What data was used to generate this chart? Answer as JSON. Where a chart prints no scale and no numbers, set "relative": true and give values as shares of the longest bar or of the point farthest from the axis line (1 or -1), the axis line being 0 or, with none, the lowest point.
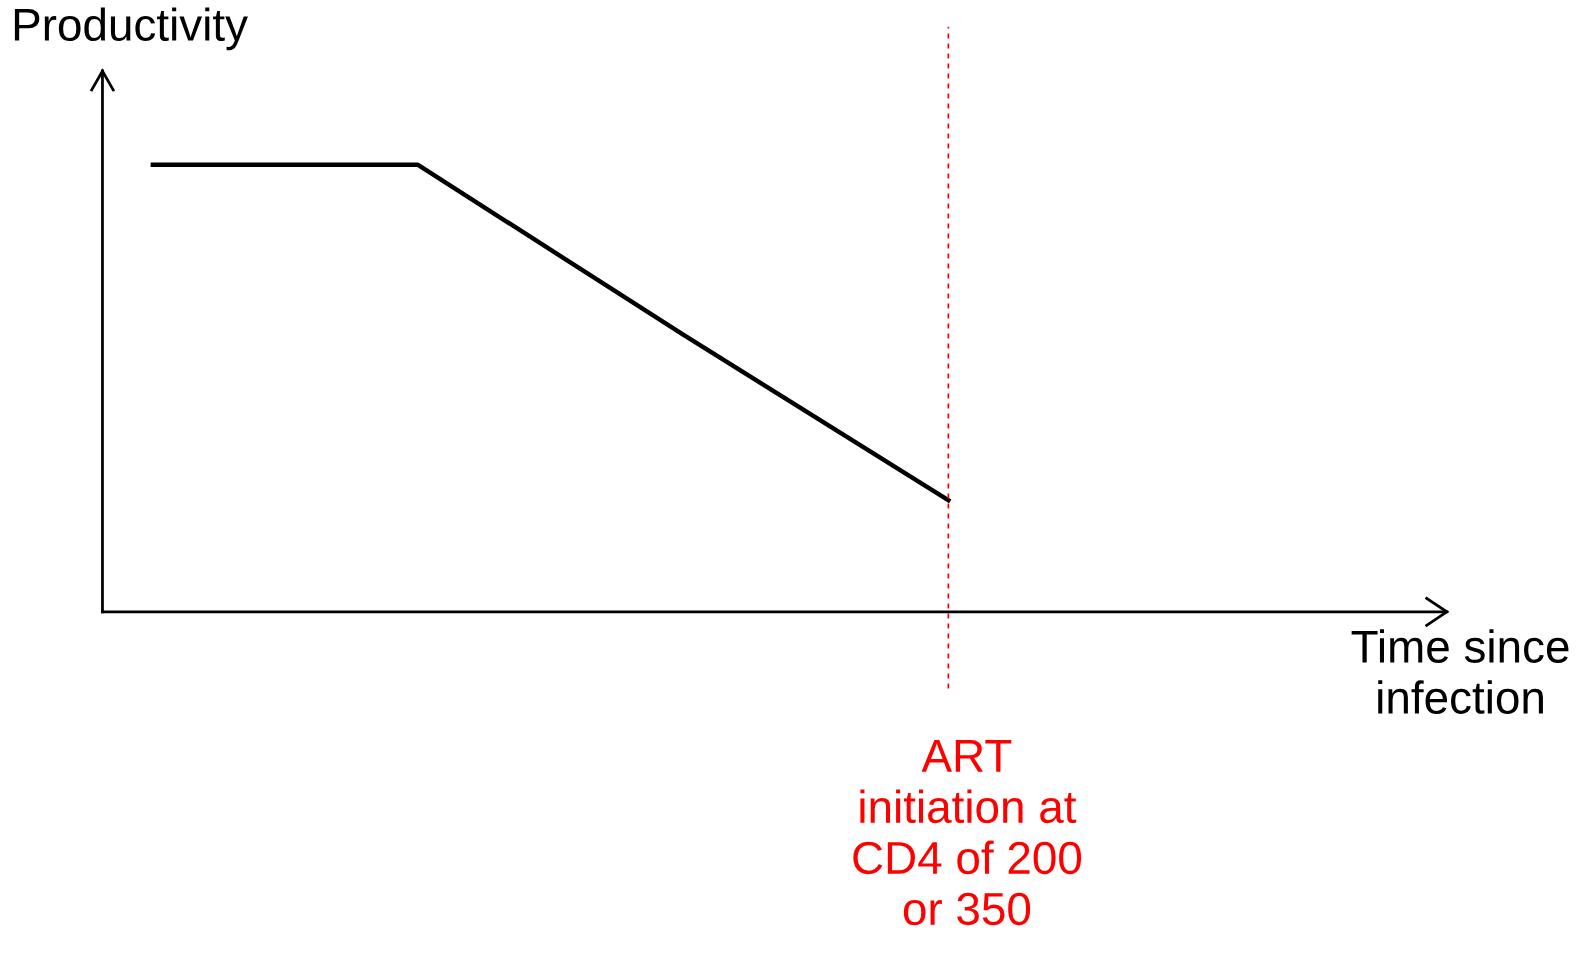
{
  "chart_data": {
    "type": "line",
    "relative": true,
    "ylabel": "Productivity",
    "categories": [
      null,
      null,
      null,
      null
    ],
    "series": [
      {
        "color": "#000000",
        "values": [
          1,
          1,
          0.62,
          0.25
        ]
      }
    ],
    "annotations": [
      "Time since\ninfection",
      "ART\ninitiation at\nCD4 of 200\nor 350"
    ],
    "marker": "none",
    "line_style": "solid",
    "grid": false
  }
}
